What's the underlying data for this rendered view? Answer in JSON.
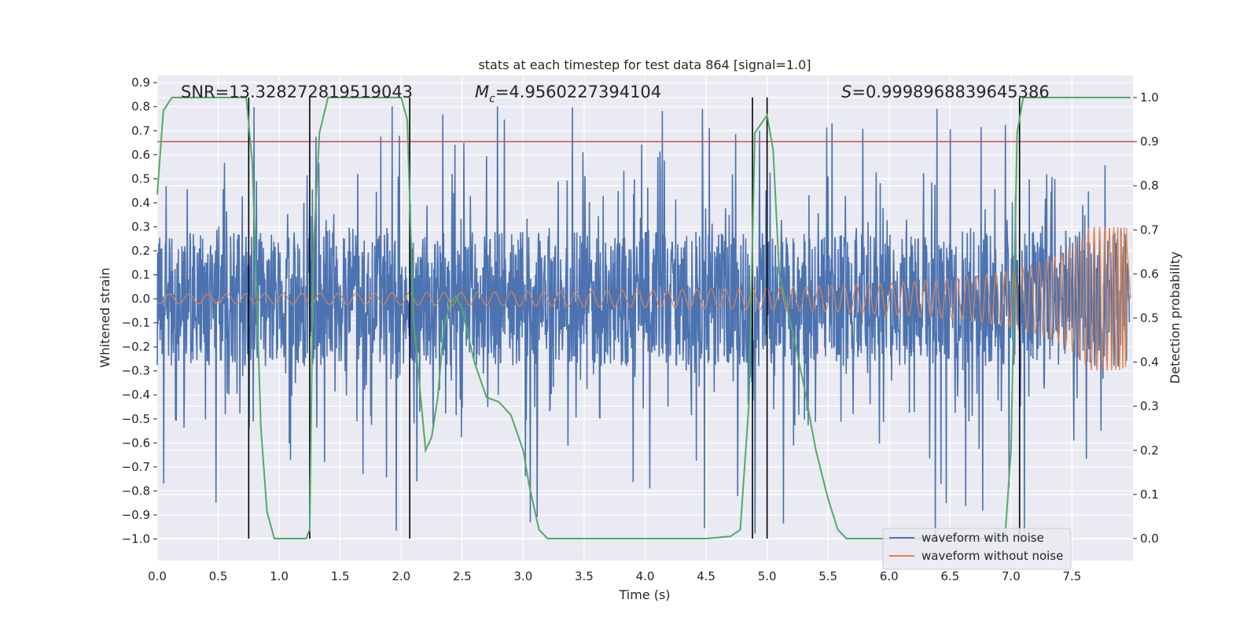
{
  "chart_data": {
    "type": "line",
    "title": "stats at each timestep for test data 864 [signal=1.0]",
    "xlabel": "Time (s)",
    "ylabel": "Whitened strain",
    "y2label": "Detection probability",
    "xlim": [
      0.0,
      8.0
    ],
    "ylim": [
      -1.09,
      0.93
    ],
    "y2lim": [
      -0.05,
      1.05
    ],
    "xticks": [
      "0.0",
      "0.5",
      "1.0",
      "1.5",
      "2.0",
      "2.5",
      "3.0",
      "3.5",
      "4.0",
      "4.5",
      "5.0",
      "5.5",
      "6.0",
      "6.5",
      "7.0",
      "7.5"
    ],
    "yticks": [
      "0.9",
      "0.8",
      "0.7",
      "0.6",
      "0.5",
      "0.4",
      "0.3",
      "0.2",
      "0.1",
      "0.0",
      "−0.1",
      "−0.2",
      "−0.3",
      "−0.4",
      "−0.5",
      "−0.6",
      "−0.7",
      "−0.8",
      "−0.9",
      "−1.0"
    ],
    "y2ticks": [
      "1.0",
      "0.9",
      "0.8",
      "0.7",
      "0.6",
      "0.5",
      "0.4",
      "0.3",
      "0.2",
      "0.1",
      "0.0"
    ],
    "annotations": {
      "snr": "SNR=13.328272819519043",
      "mc_symbol": "M",
      "mc_sub": "c",
      "mc_value": "=4.9560227394104",
      "s_symbol": "S",
      "s_value": "=0.9998968839645386"
    },
    "threshold": {
      "axis": "y2",
      "value": 0.9,
      "color": "#c44e52"
    },
    "vertical_lines": [
      0.75,
      1.25,
      2.07,
      4.88,
      5.0,
      7.07
    ],
    "series": [
      {
        "name": "waveform with noise",
        "color": "#4c72b0",
        "kind": "noise_band",
        "core_amplitude": 0.28,
        "peak_max": 0.84,
        "peak_min": -1.0
      },
      {
        "name": "waveform without noise",
        "color": "#dd8452",
        "kind": "chirp",
        "start_amplitude": 0.02,
        "end_amplitude": 0.3,
        "merger_time": 7.95
      },
      {
        "name": "detection probability",
        "color": "#55a868",
        "axis": "y2",
        "x": [
          0.0,
          0.05,
          0.12,
          0.2,
          0.3,
          0.4,
          0.5,
          0.6,
          0.7,
          0.73,
          0.78,
          0.85,
          0.9,
          0.96,
          1.0,
          1.08,
          1.15,
          1.22,
          1.25,
          1.28,
          1.33,
          1.4,
          1.5,
          1.6,
          1.7,
          1.8,
          1.9,
          2.0,
          2.05,
          2.1,
          2.2,
          2.25,
          2.3,
          2.35,
          2.4,
          2.45,
          2.5,
          2.6,
          2.7,
          2.8,
          2.9,
          3.0,
          3.05,
          3.13,
          3.2,
          3.5,
          4.0,
          4.5,
          4.7,
          4.78,
          4.85,
          4.9,
          4.95,
          5.0,
          5.05,
          5.1,
          5.2,
          5.3,
          5.4,
          5.5,
          5.58,
          5.65,
          5.7,
          6.0,
          6.5,
          6.95,
          7.0,
          7.05,
          7.1,
          7.2,
          7.5,
          7.98
        ],
        "y": [
          0.78,
          0.97,
          1.0,
          1.0,
          1.0,
          1.0,
          1.0,
          1.0,
          1.0,
          1.0,
          0.85,
          0.25,
          0.06,
          0.0,
          0.0,
          0.0,
          0.0,
          0.0,
          0.02,
          0.65,
          0.92,
          1.0,
          1.0,
          1.0,
          1.0,
          1.0,
          1.0,
          1.0,
          0.95,
          0.5,
          0.2,
          0.23,
          0.32,
          0.48,
          0.53,
          0.55,
          0.52,
          0.4,
          0.32,
          0.31,
          0.28,
          0.2,
          0.12,
          0.02,
          0.0,
          0.0,
          0.0,
          0.0,
          0.005,
          0.02,
          0.3,
          0.92,
          0.94,
          0.96,
          0.88,
          0.6,
          0.48,
          0.35,
          0.2,
          0.09,
          0.02,
          0.0,
          0.0,
          0.0,
          0.0,
          0.0,
          0.2,
          0.92,
          1.0,
          1.0,
          1.0,
          1.0
        ]
      }
    ],
    "legend": {
      "position": "lower-right",
      "entries": [
        "waveform with noise",
        "waveform without noise"
      ]
    },
    "grid": true
  }
}
